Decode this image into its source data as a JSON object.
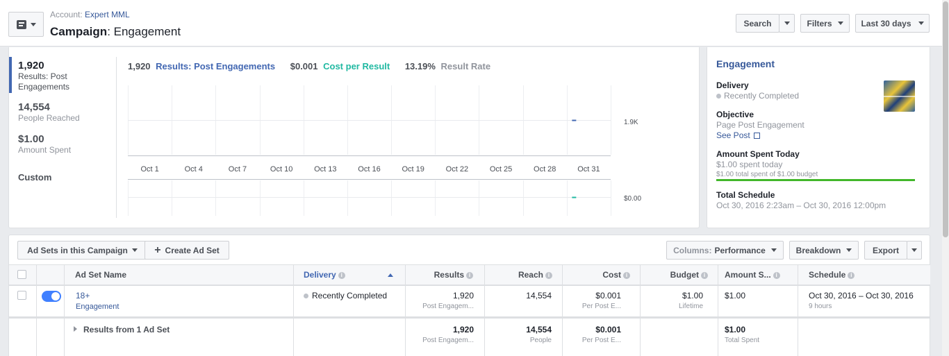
{
  "header": {
    "account_label": "Account:",
    "account_name": "Expert MML",
    "title_bold": "Campaign",
    "title_rest": ": Engagement",
    "search_label": "Search",
    "filters_label": "Filters",
    "date_range_label": "Last 30 days"
  },
  "metrics": [
    {
      "value": "1,920",
      "label": "Results: Post Engagements"
    },
    {
      "value": "14,554",
      "label": "People Reached"
    },
    {
      "value": "$1.00",
      "label": "Amount Spent"
    }
  ],
  "metrics_custom": "Custom",
  "chart_header": {
    "results_value": "1,920",
    "results_label": "Results: Post Engagements",
    "cost_value": "$0.001",
    "cost_label": "Cost per Result",
    "rate_value": "13.19%",
    "rate_label": "Result Rate"
  },
  "chart_data": {
    "type": "line",
    "x": [
      "Oct 1",
      "Oct 4",
      "Oct 7",
      "Oct 10",
      "Oct 13",
      "Oct 16",
      "Oct 19",
      "Oct 22",
      "Oct 25",
      "Oct 28",
      "Oct 31"
    ],
    "top_axis_label": "1.9K",
    "bottom_axis_label": "$0.00",
    "series": [
      {
        "name": "Results: Post Engagements",
        "color": "#4267b2",
        "points": [
          {
            "x": "Oct 30",
            "y": 1920
          }
        ]
      },
      {
        "name": "Cost per Result",
        "color": "#21b9a2",
        "points": [
          {
            "x": "Oct 30",
            "y": 0.001
          }
        ]
      }
    ]
  },
  "summary": {
    "title": "Engagement",
    "delivery_label": "Delivery",
    "delivery_value": "Recently Completed",
    "objective_label": "Objective",
    "objective_value": "Page Post Engagement",
    "see_post": "See Post",
    "amount_today_label": "Amount Spent Today",
    "amount_today_value": "$1.00 spent today",
    "budget_note": "$1.00 total spent of $1.00 budget",
    "budget_progress": 1.0,
    "schedule_label": "Total Schedule",
    "schedule_value": "Oct 30, 2016 2:23am – Oct 30, 2016 12:00pm"
  },
  "table_toolbar": {
    "adsets_label": "Ad Sets in this Campaign",
    "create_label": "Create Ad Set",
    "columns_prefix": "Columns:",
    "columns_value": "Performance",
    "breakdown_label": "Breakdown",
    "export_label": "Export"
  },
  "table": {
    "headers": {
      "name": "Ad Set Name",
      "delivery": "Delivery",
      "results": "Results",
      "reach": "Reach",
      "cost": "Cost",
      "budget": "Budget",
      "amount": "Amount S...",
      "schedule": "Schedule"
    },
    "row": {
      "name": "18+",
      "name_sub": "Engagement",
      "delivery": "Recently Completed",
      "results": "1,920",
      "results_sub": "Post Engagem...",
      "reach": "14,554",
      "cost": "$0.001",
      "cost_sub": "Per Post E...",
      "budget": "$1.00",
      "budget_sub": "Lifetime",
      "amount": "$1.00",
      "schedule": "Oct 30, 2016 – Oct 30, 2016",
      "schedule_sub": "9 hours"
    },
    "total": {
      "label": "Results from 1 Ad Set",
      "results": "1,920",
      "results_sub": "Post Engagem...",
      "reach": "14,554",
      "reach_sub": "People",
      "cost": "$0.001",
      "cost_sub": "Per Post E...",
      "amount": "$1.00",
      "amount_sub": "Total Spent"
    }
  }
}
